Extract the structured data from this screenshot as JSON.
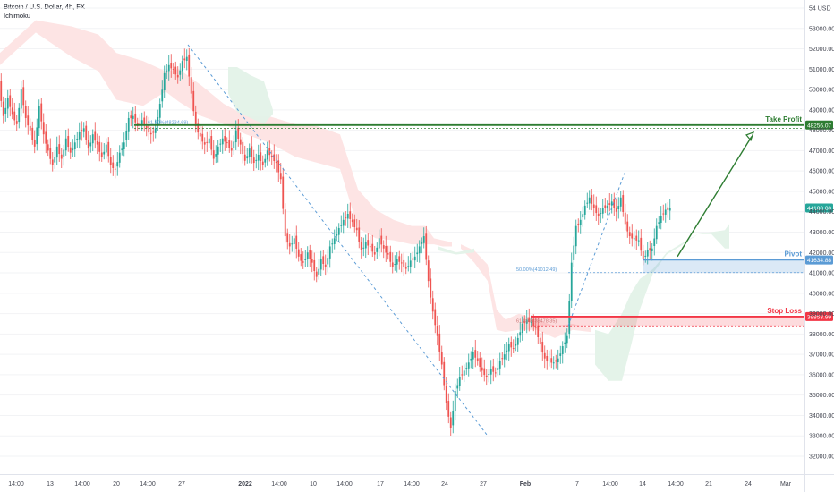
{
  "header": {
    "symbol": "Bitcoin / U.S. Dollar, 4h, FX",
    "indicator": "Ichimoku"
  },
  "currency_label": "USD",
  "colors": {
    "up": "#26a69a",
    "down": "#ef5350",
    "take_profit": "#2e7d32",
    "pivot": "#5b9bd5",
    "stop_loss": "#f23645",
    "last_price": "#26a69a",
    "cloud_bull": "#e3f2e8",
    "cloud_bear": "#fde3e3"
  },
  "chart_data": {
    "type": "candlestick",
    "symbol": "BTCUSD",
    "timeframe": "4h",
    "ylim": [
      31500,
      54500
    ],
    "y_ticks": [
      32000,
      33000,
      34000,
      35000,
      36000,
      37000,
      38000,
      39000,
      40000,
      41000,
      42000,
      43000,
      44000,
      45000,
      46000,
      47000,
      48000,
      49000,
      50000,
      51000,
      52000,
      53000,
      54000
    ],
    "y_tick_labels": [
      "32000.00",
      "33000.00",
      "34000.00",
      "35000.00",
      "36000.00",
      "37000.00",
      "38000.00",
      "39000.00",
      "40000.00",
      "41000.00",
      "42000.00",
      "43000.00",
      "44000.00",
      "45000.00",
      "46000.00",
      "47000.00",
      "48000.00",
      "49000.00",
      "50000.00",
      "51000.00",
      "52000.00",
      "53000.00",
      "54000.00"
    ],
    "x_ticks": [
      "14:00",
      "13",
      "14:00",
      "20",
      "14:00",
      "27",
      "2022",
      "14:00",
      "10",
      "14:00",
      "17",
      "14:00",
      "24",
      "27",
      "Feb",
      "7",
      "14:00",
      "14",
      "14:00",
      "21",
      "24",
      "Mar"
    ],
    "levels": [
      {
        "name": "Take Profit",
        "value": 48256.07,
        "label": "48256.07"
      },
      {
        "name": "Pivot",
        "value": 41634.88,
        "label": "41634.88"
      },
      {
        "name": "Stop Loss",
        "value": 38853.99,
        "label": "38853.99"
      }
    ],
    "last_price": {
      "value": 44188.0,
      "label": "44188.00"
    },
    "fib_labels": [
      {
        "text": "50.00%(41012.49)",
        "value": 41012.49
      },
      {
        "text": "61.80%(38478.35)",
        "value": 38478.35
      },
      {
        "text": "61.80%(48234.69)",
        "value": 48234.69
      }
    ],
    "path_points": [
      [
        0,
        50300
      ],
      [
        5,
        48700
      ],
      [
        10,
        49600
      ],
      [
        15,
        48800
      ],
      [
        20,
        48300
      ],
      [
        25,
        50000
      ],
      [
        30,
        48600
      ],
      [
        35,
        48000
      ],
      [
        40,
        47200
      ],
      [
        45,
        49200
      ],
      [
        50,
        47800
      ],
      [
        55,
        47000
      ],
      [
        60,
        46300
      ],
      [
        65,
        47200
      ],
      [
        70,
        46600
      ],
      [
        75,
        47600
      ],
      [
        80,
        46900
      ],
      [
        85,
        47400
      ],
      [
        90,
        47900
      ],
      [
        95,
        48100
      ],
      [
        100,
        47100
      ],
      [
        105,
        47800
      ],
      [
        110,
        47300
      ],
      [
        115,
        46700
      ],
      [
        120,
        47300
      ],
      [
        125,
        46300
      ],
      [
        130,
        46100
      ],
      [
        135,
        46900
      ],
      [
        140,
        47400
      ],
      [
        145,
        48600
      ],
      [
        150,
        48700
      ],
      [
        155,
        48200
      ],
      [
        160,
        48500
      ],
      [
        165,
        48100
      ],
      [
        170,
        47800
      ],
      [
        175,
        48100
      ],
      [
        180,
        49300
      ],
      [
        185,
        50800
      ],
      [
        190,
        51200
      ],
      [
        195,
        51000
      ],
      [
        200,
        50600
      ],
      [
        205,
        51400
      ],
      [
        210,
        51600
      ],
      [
        215,
        49800
      ],
      [
        220,
        48200
      ],
      [
        225,
        47700
      ],
      [
        230,
        47300
      ],
      [
        235,
        47600
      ],
      [
        240,
        46600
      ],
      [
        245,
        47200
      ],
      [
        250,
        47600
      ],
      [
        255,
        47400
      ],
      [
        260,
        47000
      ],
      [
        265,
        48000
      ],
      [
        270,
        47300
      ],
      [
        275,
        46500
      ],
      [
        280,
        47100
      ],
      [
        285,
        46400
      ],
      [
        290,
        46800
      ],
      [
        295,
        46300
      ],
      [
        300,
        47000
      ],
      [
        305,
        46700
      ],
      [
        310,
        46400
      ],
      [
        315,
        45600
      ],
      [
        320,
        42800
      ],
      [
        325,
        42300
      ],
      [
        330,
        42700
      ],
      [
        335,
        41800
      ],
      [
        340,
        41500
      ],
      [
        345,
        42000
      ],
      [
        350,
        41500
      ],
      [
        355,
        40800
      ],
      [
        360,
        41700
      ],
      [
        365,
        41300
      ],
      [
        370,
        42300
      ],
      [
        375,
        42700
      ],
      [
        380,
        43200
      ],
      [
        385,
        43600
      ],
      [
        390,
        43900
      ],
      [
        395,
        43500
      ],
      [
        400,
        43100
      ],
      [
        405,
        42100
      ],
      [
        410,
        42500
      ],
      [
        415,
        42300
      ],
      [
        420,
        41900
      ],
      [
        425,
        42700
      ],
      [
        430,
        42200
      ],
      [
        435,
        41900
      ],
      [
        440,
        41300
      ],
      [
        445,
        41700
      ],
      [
        450,
        41500
      ],
      [
        455,
        41200
      ],
      [
        460,
        41600
      ],
      [
        465,
        41800
      ],
      [
        470,
        42300
      ],
      [
        475,
        42800
      ],
      [
        480,
        40600
      ],
      [
        485,
        39100
      ],
      [
        490,
        37900
      ],
      [
        495,
        36500
      ],
      [
        500,
        34600
      ],
      [
        505,
        33400
      ],
      [
        510,
        35200
      ],
      [
        515,
        35900
      ],
      [
        520,
        36200
      ],
      [
        525,
        36600
      ],
      [
        530,
        37100
      ],
      [
        535,
        36700
      ],
      [
        540,
        36200
      ],
      [
        545,
        35900
      ],
      [
        550,
        36300
      ],
      [
        555,
        36100
      ],
      [
        560,
        36700
      ],
      [
        565,
        37000
      ],
      [
        570,
        37500
      ],
      [
        575,
        37300
      ],
      [
        580,
        37800
      ],
      [
        585,
        38500
      ],
      [
        590,
        38700
      ],
      [
        595,
        38600
      ],
      [
        600,
        38300
      ],
      [
        605,
        37500
      ],
      [
        610,
        36800
      ],
      [
        615,
        36700
      ],
      [
        620,
        36600
      ],
      [
        625,
        36800
      ],
      [
        630,
        37400
      ],
      [
        635,
        37900
      ],
      [
        640,
        41500
      ],
      [
        645,
        43300
      ],
      [
        650,
        43600
      ],
      [
        655,
        44300
      ],
      [
        660,
        44700
      ],
      [
        665,
        44200
      ],
      [
        670,
        43800
      ],
      [
        675,
        44200
      ],
      [
        680,
        44300
      ],
      [
        685,
        44500
      ],
      [
        690,
        44000
      ],
      [
        695,
        44700
      ],
      [
        700,
        43400
      ],
      [
        705,
        42800
      ],
      [
        710,
        42700
      ],
      [
        715,
        42600
      ],
      [
        720,
        41700
      ],
      [
        725,
        42100
      ],
      [
        730,
        42200
      ],
      [
        735,
        43300
      ],
      [
        740,
        43800
      ],
      [
        745,
        44100
      ],
      [
        750,
        44188
      ]
    ],
    "cloud_segments": [
      {
        "points": [
          [
            0,
            51800,
            51200
          ],
          [
            40,
            53400,
            52800
          ],
          [
            80,
            53100,
            51600
          ],
          [
            110,
            52700,
            50900
          ],
          [
            130,
            51800,
            49500
          ],
          [
            160,
            51400,
            49200
          ],
          [
            185,
            50900,
            49900
          ],
          [
            200,
            51000,
            49400
          ],
          [
            225,
            50200,
            48700
          ],
          [
            250,
            49300,
            48300
          ],
          [
            275,
            48700,
            47800
          ],
          [
            300,
            48700,
            47400
          ],
          [
            330,
            48300,
            46700
          ],
          [
            355,
            48200,
            46400
          ],
          [
            380,
            47800,
            46100
          ],
          [
            400,
            45100,
            43200
          ],
          [
            420,
            44100,
            42700
          ],
          [
            440,
            43600,
            42600
          ],
          [
            460,
            43300,
            42400
          ],
          [
            475,
            43300,
            42400
          ],
          [
            485,
            42700,
            42400
          ],
          [
            495,
            42600,
            42300
          ],
          [
            505,
            42500,
            42300
          ]
        ],
        "fill": "cloud_bear"
      },
      {
        "points": [
          [
            515,
            42400,
            42200
          ],
          [
            530,
            42100,
            41500
          ],
          [
            545,
            41400,
            40600
          ],
          [
            555,
            39200,
            38200
          ],
          [
            565,
            38700,
            38100
          ],
          [
            580,
            39000,
            38200
          ],
          [
            600,
            38700,
            38200
          ],
          [
            620,
            38400,
            37800
          ],
          [
            640,
            38500,
            38200
          ],
          [
            660,
            38300,
            38100
          ]
        ],
        "fill": "cloud_bear"
      },
      {
        "points": [
          [
            255,
            51100,
            49800
          ],
          [
            265,
            51100,
            48900
          ],
          [
            280,
            50700,
            48600
          ],
          [
            295,
            50400,
            48300
          ],
          [
            305,
            49000,
            48800
          ]
        ],
        "fill": "cloud_bull"
      },
      {
        "points": [
          [
            490,
            42100,
            42300
          ],
          [
            510,
            41900,
            42000
          ],
          [
            530,
            42000,
            42200
          ]
        ],
        "fill": "cloud_bull"
      },
      {
        "points": [
          [
            665,
            36500,
            38200
          ],
          [
            680,
            35700,
            38000
          ],
          [
            695,
            35700,
            39000
          ],
          [
            705,
            37400,
            40000
          ],
          [
            715,
            39200,
            40700
          ],
          [
            730,
            41000,
            41200
          ],
          [
            745,
            41900,
            42000
          ],
          [
            760,
            42300,
            42400
          ],
          [
            780,
            42900,
            42900
          ],
          [
            795,
            43000,
            42900
          ],
          [
            810,
            43100,
            42200
          ],
          [
            815,
            43400,
            42200
          ]
        ],
        "fill": "cloud_bull"
      }
    ]
  }
}
